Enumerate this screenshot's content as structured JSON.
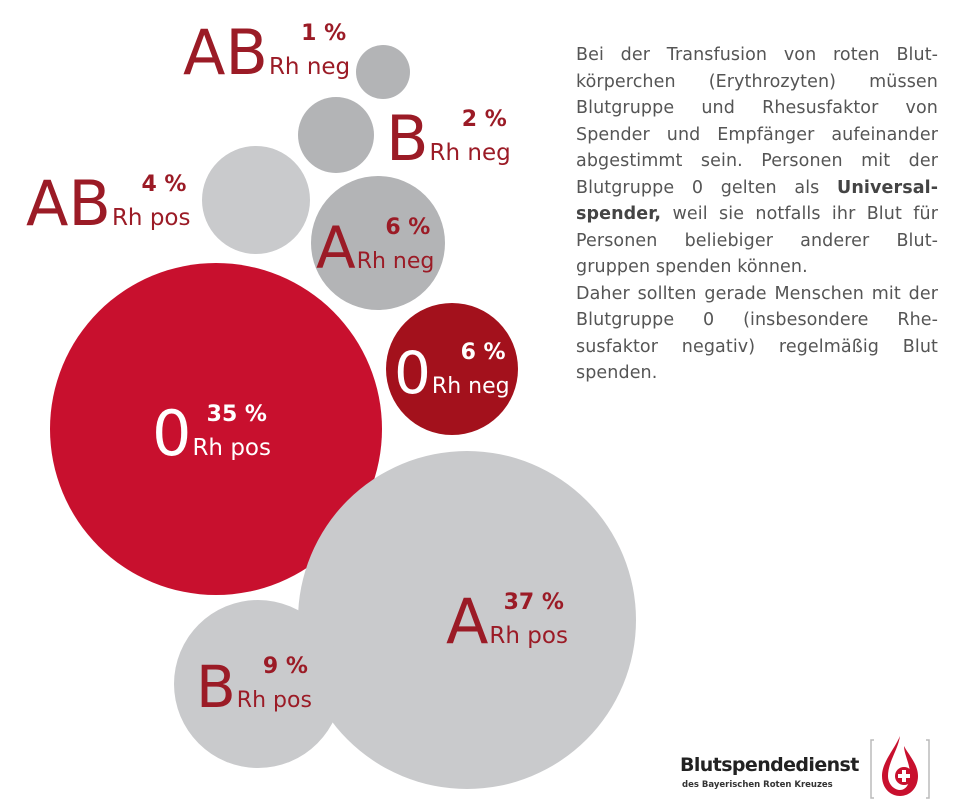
{
  "chart_data": {
    "type": "bubble",
    "title": "",
    "unit": "%",
    "bubbles": [
      {
        "letter": "AB",
        "rh": "Rh neg",
        "pct_label": "1 %",
        "value": 1,
        "style": "grey"
      },
      {
        "letter": "B",
        "rh": "Rh neg",
        "pct_label": "2 %",
        "value": 2,
        "style": "grey"
      },
      {
        "letter": "AB",
        "rh": "Rh pos",
        "pct_label": "4 %",
        "value": 4,
        "style": "lightgrey"
      },
      {
        "letter": "A",
        "rh": "Rh neg",
        "pct_label": "6 %",
        "value": 6,
        "style": "grey"
      },
      {
        "letter": "0",
        "rh": "Rh neg",
        "pct_label": "6 %",
        "value": 6,
        "style": "darkred"
      },
      {
        "letter": "0",
        "rh": "Rh pos",
        "pct_label": "35 %",
        "value": 35,
        "style": "red"
      },
      {
        "letter": "A",
        "rh": "Rh pos",
        "pct_label": "37 %",
        "value": 37,
        "style": "lightgrey"
      },
      {
        "letter": "B",
        "rh": "Rh pos",
        "pct_label": "9 %",
        "value": 9,
        "style": "lightgrey"
      }
    ]
  },
  "colors": {
    "red": "#c8102e",
    "darkred": "#a3111c",
    "grey": "#b3b4b6",
    "lightgrey": "#c9cacc",
    "label_red": "#9b1b26",
    "text_on_dark": "#ffffff"
  },
  "info": {
    "text_1": "Bei der Transfusion von roten Blut­körperchen (Erythrozyten) müssen Blutgruppe und Rhesusfaktor von Spender und Empfänger aufeinander abgestimmt sein. Personen mit der Blutgruppe 0 gelten als ",
    "bold": "Universal­spender,",
    "text_2": " weil sie notfalls ihr Blut für Personen beliebiger anderer Blut­gruppen spenden können.",
    "text_3": "Daher sollten gerade Menschen mit der Blutgruppe 0 (insbesondere Rhe­susfaktor negativ) regelmäßig Blut spenden."
  },
  "logo": {
    "name": "Blutspendedienst",
    "subtitle": "des Bayerischen Roten Kreuzes",
    "icon": "blood-drop-cross-icon"
  }
}
